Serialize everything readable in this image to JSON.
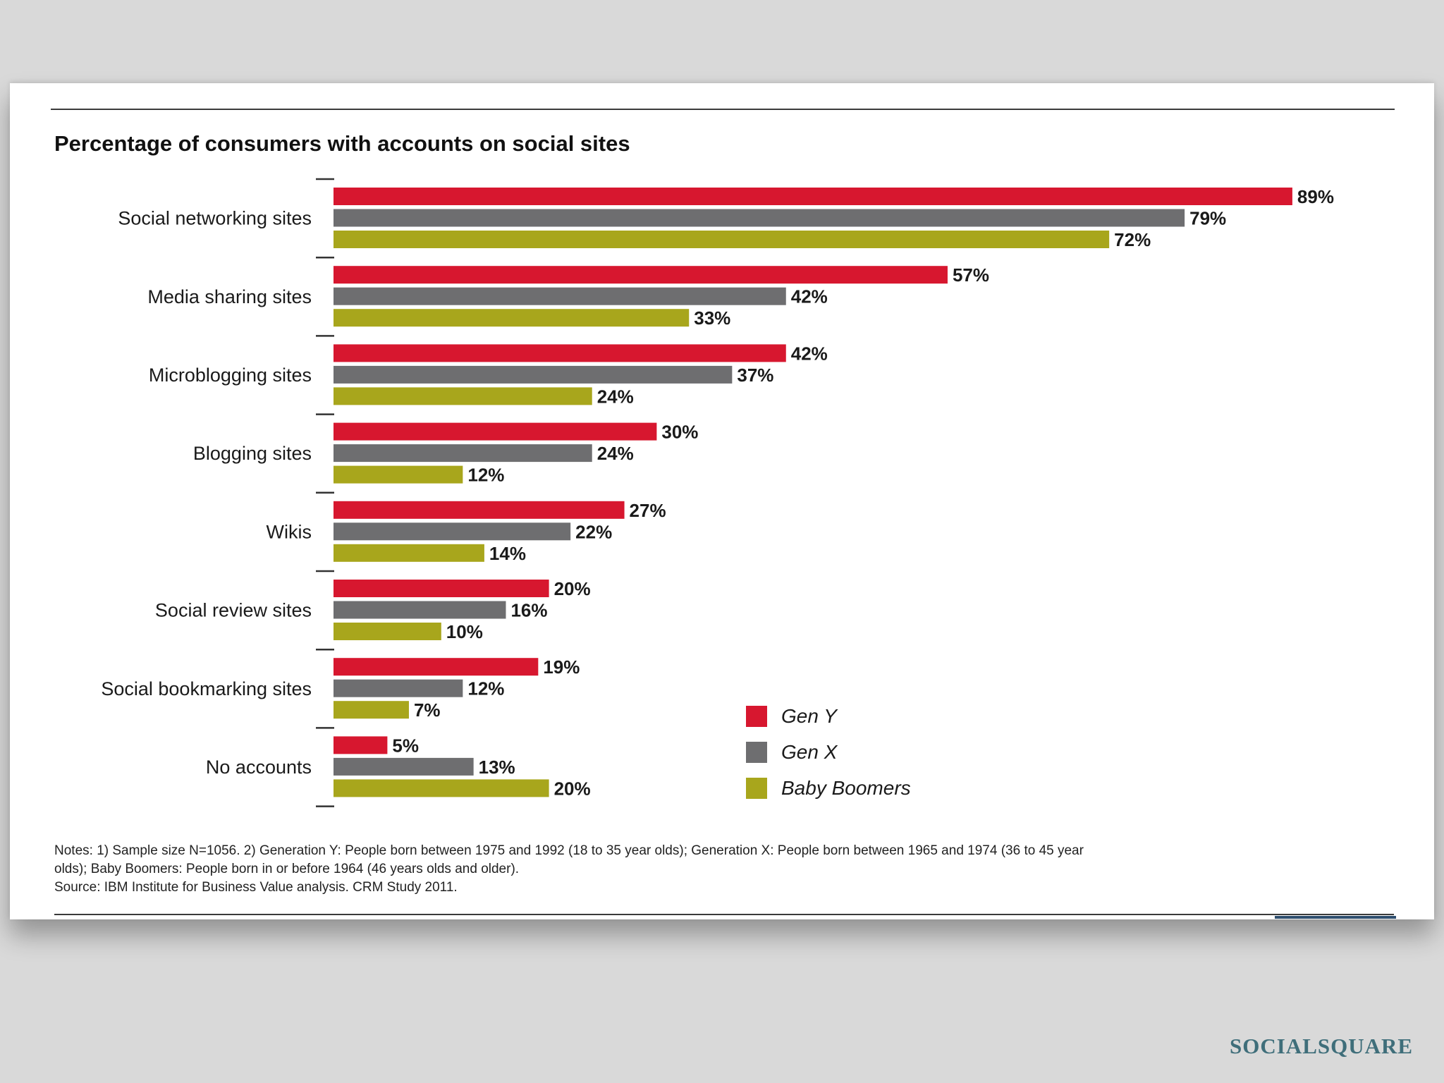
{
  "chart_data": {
    "type": "bar",
    "orientation": "horizontal",
    "title": "Percentage of consumers with accounts on social sites",
    "categories": [
      "Social networking sites",
      "Media sharing sites",
      "Microblogging sites",
      "Blogging sites",
      "Wikis",
      "Social review sites",
      "Social bookmarking sites",
      "No accounts"
    ],
    "series": [
      {
        "name": "Gen Y",
        "color": "#d7172f",
        "values": [
          89,
          57,
          42,
          30,
          27,
          20,
          19,
          5
        ]
      },
      {
        "name": "Gen X",
        "color": "#6e6e70",
        "values": [
          79,
          42,
          37,
          24,
          22,
          16,
          12,
          13
        ]
      },
      {
        "name": "Baby Boomers",
        "color": "#a8a61c",
        "values": [
          72,
          33,
          24,
          12,
          14,
          10,
          7,
          20
        ]
      }
    ],
    "value_suffix": "%",
    "xlim": [
      0,
      100
    ],
    "legend": "bottom-center"
  },
  "notes": {
    "line1": "Notes: 1) Sample size N=1056. 2) Generation Y: People born between 1975 and 1992 (18 to 35 year olds); Generation X: People born between 1965 and 1974 (36 to 45 year",
    "line2": "olds); Baby Boomers: People born in or before 1964 (46 years olds and older).",
    "source": "Source: IBM Institute for Business Value analysis. CRM Study 2011."
  },
  "brand": "SOCIALSQUARE"
}
